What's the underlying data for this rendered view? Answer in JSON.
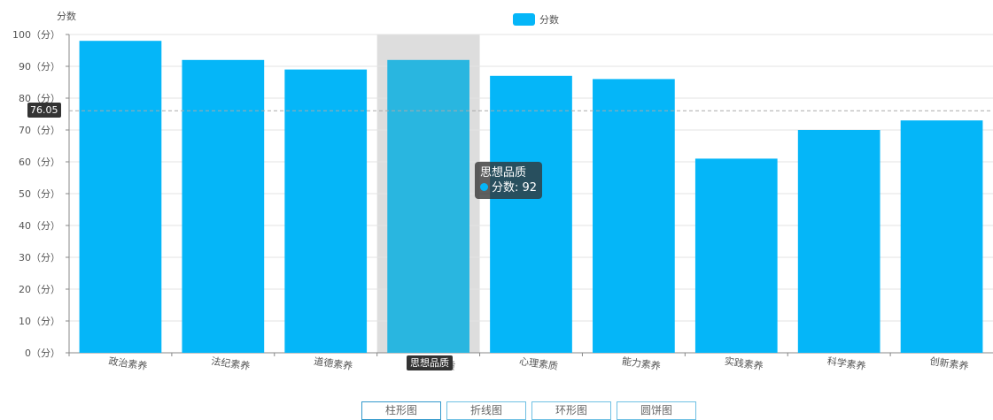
{
  "chart_data": {
    "type": "bar",
    "ylabel": "分数",
    "ylim": [
      0,
      100
    ],
    "ytick_step": 10,
    "ytick_suffix": "（分）",
    "categories": [
      "政治素养",
      "法纪素养",
      "道德素养",
      "思想品质",
      "心理素质",
      "能力素养",
      "实践素养",
      "科学素养",
      "创新素养"
    ],
    "series": [
      {
        "name": "分数",
        "values": [
          98,
          92,
          89,
          92,
          87,
          86,
          61,
          70,
          73
        ]
      }
    ],
    "average_line": 76.05,
    "legend_position": "top-center",
    "highlighted_category": "思想品质",
    "grid": true
  },
  "colors": {
    "bar": "#05b6f8",
    "bar_highlight": "#29b6e0",
    "highlight_band": "#dddddd",
    "grid": "#e3e3e3",
    "axis": "#888888",
    "avg_line": "#aaaaaa",
    "text": "#555555"
  },
  "tooltip": {
    "title": "思想品质",
    "series_label": "分数",
    "value": "92",
    "text": "分数: 92"
  },
  "average_badge": "76.05",
  "axis_pointer_label": "思想品质",
  "switcher": {
    "buttons": [
      {
        "label": "柱形图",
        "active": true
      },
      {
        "label": "折线图",
        "active": false
      },
      {
        "label": "环形图",
        "active": false
      },
      {
        "label": "圆饼图",
        "active": false
      }
    ]
  }
}
